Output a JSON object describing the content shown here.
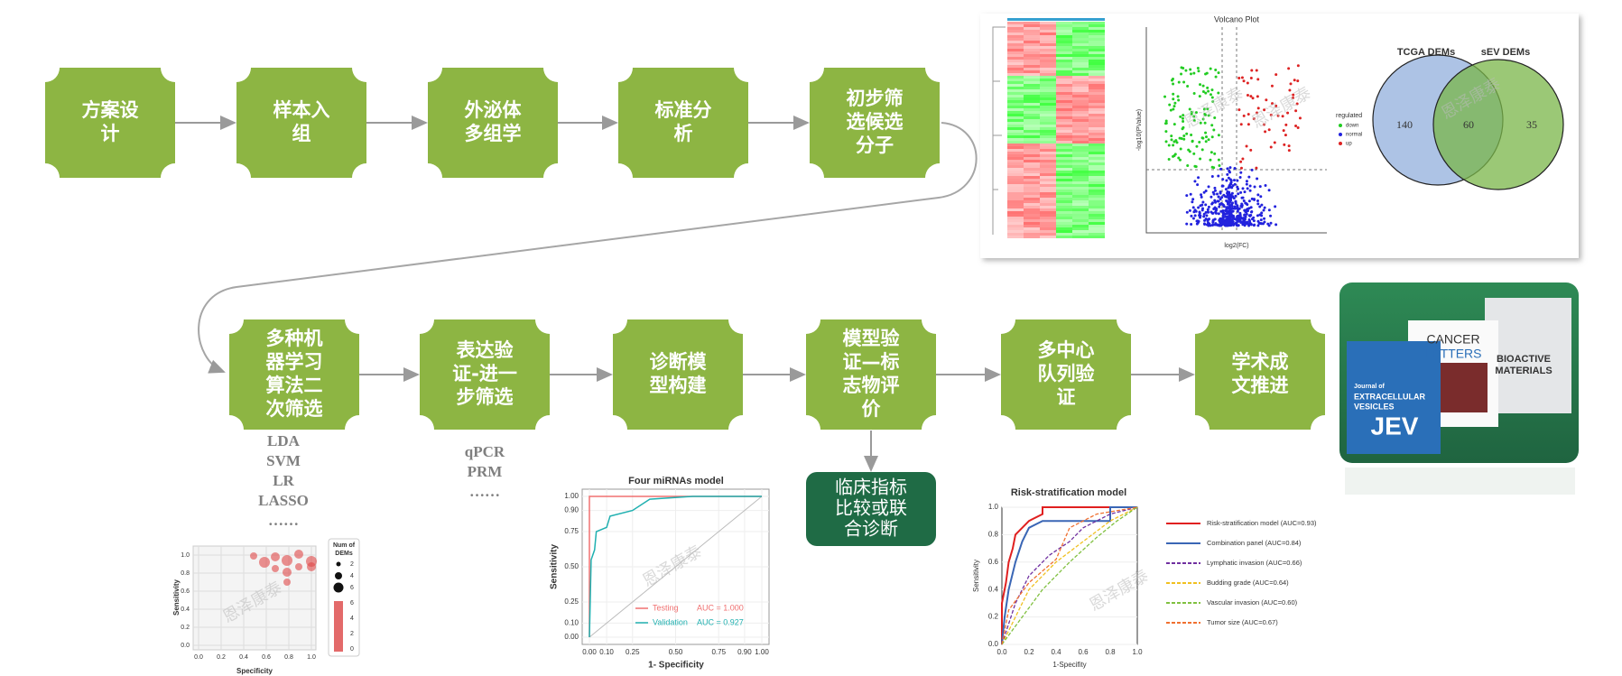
{
  "flow_row1": [
    {
      "label": [
        "方案设",
        "计"
      ]
    },
    {
      "label": [
        "样本入",
        "组"
      ]
    },
    {
      "label": [
        "外泌体",
        "多组学"
      ]
    },
    {
      "label": [
        "标准分",
        "析"
      ]
    },
    {
      "label": [
        "初步筛",
        "选候选",
        "分子"
      ]
    }
  ],
  "flow_row2": [
    {
      "label": [
        "多种机",
        "器学习",
        "算法二",
        "次筛选"
      ]
    },
    {
      "label": [
        "表达验",
        "证-进一",
        "步筛选"
      ]
    },
    {
      "label": [
        "诊断模",
        "型构建"
      ]
    },
    {
      "label": [
        "模型验",
        "证—标",
        "志物评",
        "价"
      ]
    },
    {
      "label": [
        "多中心",
        "队列验",
        "证"
      ]
    },
    {
      "label": [
        "学术成",
        "文推进"
      ]
    }
  ],
  "clinical": {
    "label": [
      "临床指标",
      "比较或联",
      "合诊断"
    ]
  },
  "methods_ml": [
    "LDA",
    "SVM",
    "LR",
    "LASSO",
    "……"
  ],
  "methods_validation": [
    "qPCR",
    "PRM",
    "……"
  ],
  "watermark": "恩泽康泰",
  "volcano": {
    "title": "Volcano Plot",
    "x_label": "log2(FC)",
    "y_label": "-log10(PValue)",
    "legend_title": "regulated",
    "legend": [
      "down",
      "normal",
      "up"
    ]
  },
  "venn": {
    "sets": [
      "TCGA DEMs",
      "sEV DEMs"
    ],
    "counts": [
      "140",
      "60",
      "35"
    ]
  },
  "journals": {
    "jev": [
      "Journal of",
      "EXTRACELLULAR",
      "VESICLES",
      "JEV"
    ],
    "cancer": [
      "CANCER",
      "LETTERS"
    ],
    "bioactive": [
      "BIOACTIVE",
      "MATERIALS"
    ]
  },
  "bubble": {
    "x_label": "Specificity",
    "y_label": "Sensitivity",
    "ticks": [
      "0.0",
      "0.2",
      "0.4",
      "0.6",
      "0.8",
      "1.0"
    ],
    "legend_title": [
      "Num of",
      "DEMs"
    ],
    "size_legend": [
      "2",
      "4",
      "6"
    ],
    "color_legend": [
      "6",
      "4",
      "2",
      "0"
    ]
  },
  "roc1": {
    "title": "Four miRNAs model",
    "x_label": "1- Specificity",
    "y_label": "Sensitivity",
    "xticks": [
      "0.00",
      "0.10",
      "0.25",
      "0.50",
      "0.75",
      "0.90",
      "1.00"
    ],
    "yticks": [
      "0.00",
      "0.10",
      "0.25",
      "0.50",
      "0.75",
      "0.90",
      "1.00"
    ],
    "legend": [
      {
        "name": "Testing",
        "auc": "AUC = 1.000"
      },
      {
        "name": "Validation",
        "auc": "AUC = 0.927"
      }
    ]
  },
  "roc2": {
    "title": "Risk-stratification model",
    "x_label": "1-Specifity",
    "y_label": "Sensitivity",
    "ticks": [
      "0.0",
      "0.2",
      "0.4",
      "0.6",
      "0.8",
      "1.0"
    ],
    "legend": [
      "Risk-stratification model (AUC=0.93)",
      "Combination panel (AUC=0.84)",
      "Lymphatic invasion (AUC=0.66)",
      "Budding grade (AUC=0.64)",
      "Vascular invasion (AUC=0.60)",
      "Tumor size (AUC=0.67)"
    ]
  }
}
